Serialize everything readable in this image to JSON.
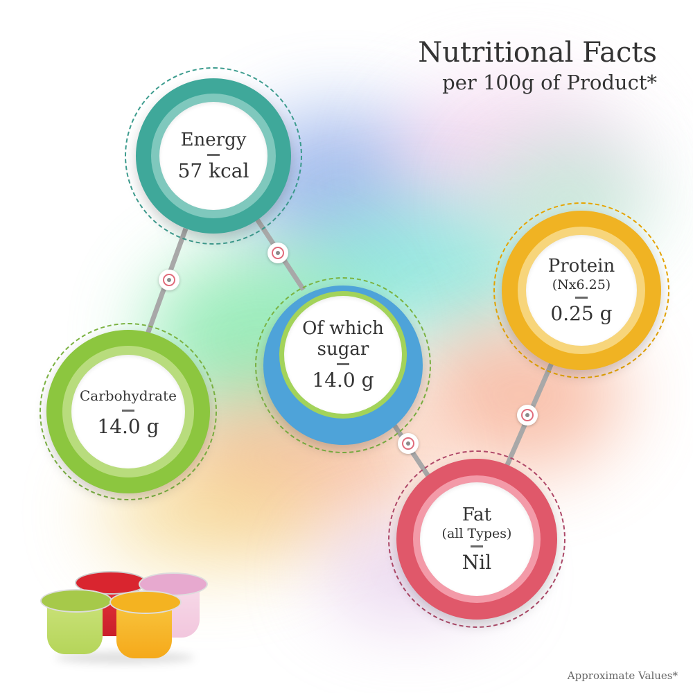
{
  "header": {
    "title": "Nutritional Facts",
    "subtitle": "per 100g of Product*"
  },
  "footnote": "Approximate Values*",
  "nutrients": {
    "energy": {
      "label": "Energy",
      "value": "57 kcal",
      "color": "#3fa89a"
    },
    "carbohydrate": {
      "label": "Carbohydrate",
      "value": "14.0 g",
      "color": "#8cc63f"
    },
    "sugar": {
      "label_line1": "Of which",
      "label_line2": "sugar",
      "value": "14.0 g",
      "color": "#4ea3d9"
    },
    "protein": {
      "label": "Protein",
      "sub": "(Nx6.25)",
      "value": "0.25 g",
      "color": "#f0b323"
    },
    "fat": {
      "label": "Fat",
      "sub": "(all Types)",
      "value": "Nil",
      "color": "#e0586a"
    }
  },
  "product_image": {
    "icon": "jelly-cups-image",
    "cup_colors": [
      "#e8343c",
      "#f2c6dd",
      "#b5d55a",
      "#f5b324"
    ]
  }
}
